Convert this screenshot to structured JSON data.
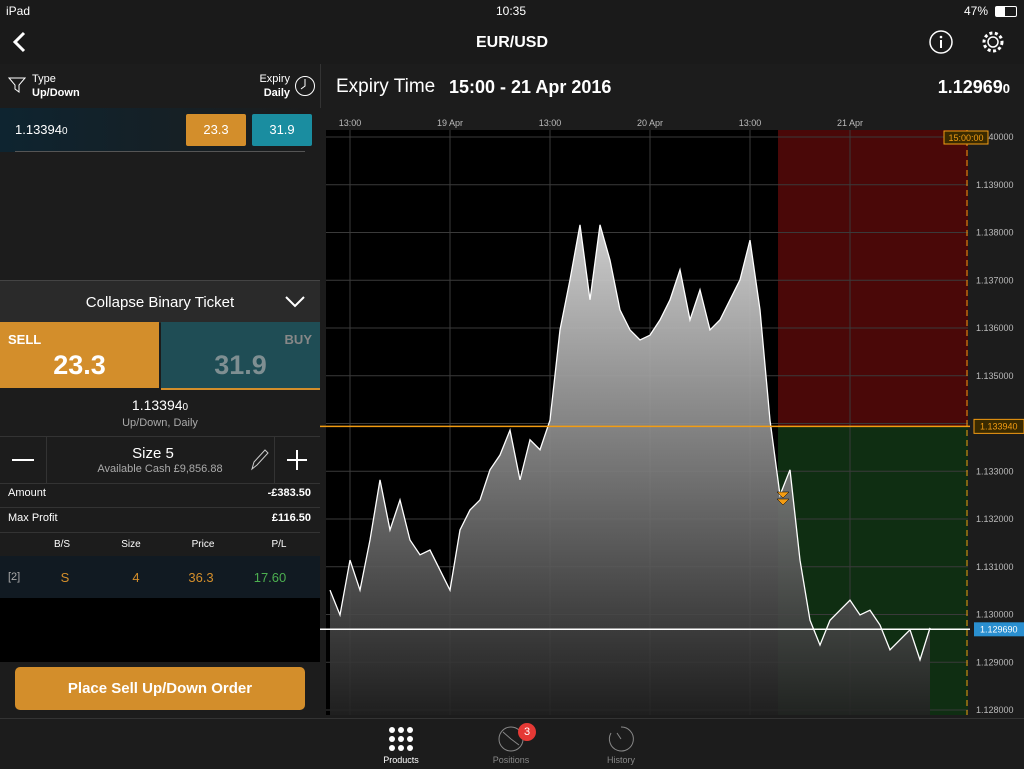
{
  "status_bar": {
    "device": "iPad",
    "time": "10:35",
    "battery": "47%"
  },
  "nav": {
    "title": "EUR/USD"
  },
  "filters": {
    "type_label": "Type",
    "type_value": "Up/Down",
    "expiry_label": "Expiry",
    "expiry_value": "Daily"
  },
  "market_row": {
    "price": "1.13394",
    "price_pip": "0",
    "sell": "23.3",
    "buy": "31.9"
  },
  "ticket": {
    "collapse": "Collapse Binary Ticket",
    "sell_label": "SELL",
    "sell_price": "23.3",
    "buy_label": "BUY",
    "buy_price": "31.9",
    "level": "1.13394",
    "level_pip": "0",
    "description": "Up/Down, Daily",
    "size": "Size 5",
    "available_cash": "Available Cash £9,856.88",
    "amount_label": "Amount",
    "amount": "-£383.50",
    "max_profit_label": "Max Profit",
    "max_profit": "£116.50"
  },
  "positions_table": {
    "headers": [
      "B/S",
      "Size",
      "Price",
      "P/L"
    ],
    "rows": [
      [
        "[2]",
        "S",
        "4",
        "36.3",
        "17.60"
      ]
    ]
  },
  "order_button": "Place Sell Up/Down Order",
  "chart_header": {
    "expiry_label": "Expiry Time",
    "expiry_value": "15:00 - 21 Apr 2016",
    "price": "1.12969",
    "price_pip": "0"
  },
  "chart_data": {
    "type": "area",
    "categories": [
      null,
      null,
      "13:00",
      null,
      null,
      null,
      null,
      null,
      null,
      null,
      null,
      null,
      "19 Apr",
      null,
      null,
      null,
      null,
      null,
      null,
      null,
      null,
      null,
      "13:00",
      null,
      null,
      null,
      null,
      null,
      null,
      null,
      null,
      null,
      "20 Apr",
      null,
      null,
      null,
      null,
      null,
      null,
      null,
      null,
      null,
      "13:00",
      null,
      null,
      null,
      null,
      null,
      null,
      null,
      null,
      null,
      "21 Apr",
      null,
      null,
      null,
      null,
      null,
      null,
      null,
      null,
      null,
      null,
      null
    ],
    "values": [
      1.13051,
      1.12999,
      1.13114,
      1.13051,
      1.13156,
      1.13282,
      1.13177,
      1.1324,
      1.13156,
      1.13125,
      1.13135,
      1.13093,
      1.13051,
      1.13177,
      1.13219,
      1.1324,
      1.13303,
      1.13334,
      1.13386,
      1.13282,
      1.13366,
      1.13345,
      1.13407,
      1.13596,
      1.13701,
      1.13816,
      1.13659,
      1.13816,
      1.13742,
      1.13638,
      1.13596,
      1.13575,
      1.13585,
      1.13617,
      1.13659,
      1.13722,
      1.13617,
      1.1368,
      1.13596,
      1.13617,
      1.13659,
      1.13701,
      1.13784,
      1.13638,
      1.13407,
      1.1325,
      1.13303,
      1.13114,
      1.12988,
      1.12936,
      1.12988,
      1.13009,
      1.1303,
      1.12999,
      1.13009,
      1.12978,
      1.12926,
      1.12947,
      1.12968,
      1.12905,
      1.12972,
      null,
      null,
      null
    ],
    "ylim": [
      1.128,
      1.14
    ],
    "yticks": [
      {
        "value": 1.14,
        "label": "1.140000"
      },
      {
        "value": 1.139,
        "label": "1.139000"
      },
      {
        "value": 1.138,
        "label": "1.138000"
      },
      {
        "value": 1.137,
        "label": "1.137000"
      },
      {
        "value": 1.136,
        "label": "1.136000"
      },
      {
        "value": 1.135,
        "label": "1.135000"
      },
      {
        "value": 1.134,
        "label": "1.134000"
      },
      {
        "value": 1.133,
        "label": "1.133000"
      },
      {
        "value": 1.132,
        "label": "1.132000"
      },
      {
        "value": 1.131,
        "label": "1.131000"
      },
      {
        "value": 1.13,
        "label": "1.130000"
      },
      {
        "value": 1.129,
        "label": "1.129000"
      },
      {
        "value": 1.128,
        "label": "1.128000"
      }
    ],
    "strike": {
      "value": 1.13394,
      "label": "1.133940"
    },
    "current": {
      "value": 1.12969,
      "label": "1.129690"
    },
    "expiry_label": "15:00:00"
  },
  "tabs": [
    {
      "label": "Products"
    },
    {
      "label": "Positions",
      "badge": "3"
    },
    {
      "label": "History"
    }
  ]
}
